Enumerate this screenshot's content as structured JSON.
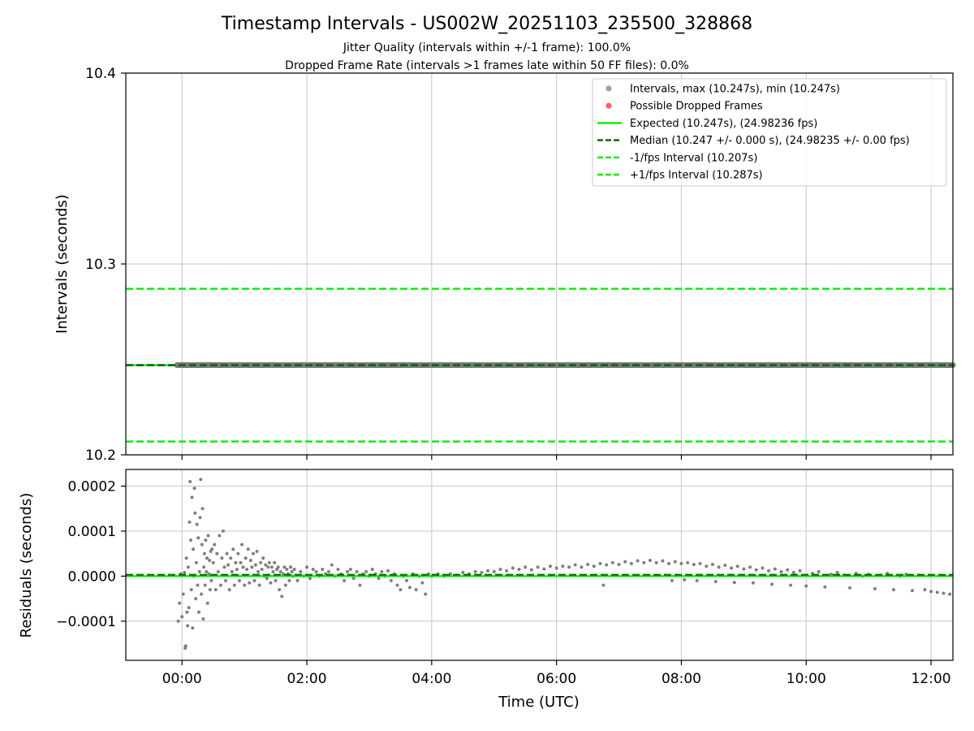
{
  "figure": {
    "title": "Timestamp Intervals - US002W_20251103_235500_328868",
    "subtitle_line1": "Jitter Quality (intervals within +/-1 frame): 100.0%",
    "subtitle_line2": "Dropped Frame Rate (intervals >1 frames late within 50 FF files): 0.0%",
    "xlabel": "Time (UTC)"
  },
  "chart_data": [
    {
      "type": "scatter",
      "panel": "intervals",
      "ylabel": "Intervals (seconds)",
      "xlim": [
        -0.9,
        12.35
      ],
      "ylim": [
        10.2,
        10.4
      ],
      "yticks": [
        10.2,
        10.3,
        10.4
      ],
      "ytick_labels": [
        "10.2",
        "10.3",
        "10.4"
      ],
      "grid": true,
      "legend_position": "upper-right",
      "intervals_value": 10.247,
      "intervals_x_range": [
        -0.08,
        12.35
      ],
      "dropped_frames": [],
      "lines": [
        {
          "key": "expected",
          "y": 10.247,
          "style": "solid",
          "color": "#00ee00"
        },
        {
          "key": "median",
          "y": 10.247,
          "style": "dashed",
          "color": "#006400"
        },
        {
          "key": "minus_fps",
          "y": 10.207,
          "style": "dashed",
          "color": "#00ee00"
        },
        {
          "key": "plus_fps",
          "y": 10.287,
          "style": "dashed",
          "color": "#00ee00"
        }
      ],
      "legend": [
        {
          "key": "intervals",
          "label": "Intervals, max (10.247s), min (10.247s)",
          "kind": "dot",
          "color": "#a0a0a0"
        },
        {
          "key": "dropped",
          "label": "Possible Dropped Frames",
          "kind": "dot",
          "color": "#ff6060"
        },
        {
          "key": "expected",
          "label": "Expected (10.247s), (24.98236 fps)",
          "kind": "solid",
          "color": "#00ee00"
        },
        {
          "key": "median",
          "label": "Median (10.247 +/- 0.000 s), (24.98235 +/- 0.00 fps)",
          "kind": "dashed",
          "color": "#006400"
        },
        {
          "key": "minus_fps",
          "label": "-1/fps Interval (10.207s)",
          "kind": "dashed",
          "color": "#00ee00"
        },
        {
          "key": "plus_fps",
          "label": "+1/fps Interval (10.287s)",
          "kind": "dashed",
          "color": "#00ee00"
        }
      ]
    },
    {
      "type": "scatter",
      "panel": "residuals",
      "ylabel": "Residuals (seconds)",
      "xlim": [
        -0.9,
        12.35
      ],
      "ylim": [
        -0.000187,
        0.000237
      ],
      "yticks": [
        -0.0001,
        0.0,
        0.0001,
        0.0002
      ],
      "ytick_labels": [
        "−0.0001",
        "0.0000",
        "0.0001",
        "0.0002"
      ],
      "xticks": [
        0,
        2,
        4,
        6,
        8,
        10,
        12
      ],
      "xtick_labels": [
        "00:00",
        "02:00",
        "04:00",
        "06:00",
        "08:00",
        "10:00",
        "12:00"
      ],
      "grid": true,
      "zero_line": {
        "y": 0.0,
        "color": "#00ee00"
      },
      "median_line": {
        "y": 3e-06,
        "color": "#006400"
      },
      "point_color": "#7f7f7f",
      "points": [
        [
          -0.06,
          -0.0001
        ],
        [
          -0.04,
          -6e-05
        ],
        [
          -0.02,
          5e-06
        ],
        [
          0.0,
          -9e-05
        ],
        [
          0.02,
          -4e-05
        ],
        [
          0.04,
          8e-06
        ],
        [
          0.05,
          -0.00016
        ],
        [
          0.06,
          -0.000155
        ],
        [
          0.07,
          4e-05
        ],
        [
          0.08,
          -8e-05
        ],
        [
          0.09,
          -0.00011
        ],
        [
          0.1,
          2e-05
        ],
        [
          0.11,
          -7e-05
        ],
        [
          0.12,
          0.00012
        ],
        [
          0.13,
          0.00021
        ],
        [
          0.14,
          8e-05
        ],
        [
          0.15,
          -3e-05
        ],
        [
          0.16,
          0.000175
        ],
        [
          0.17,
          -0.000115
        ],
        [
          0.18,
          6e-05
        ],
        [
          0.19,
          0.0
        ],
        [
          0.2,
          0.000195
        ],
        [
          0.21,
          0.00014
        ],
        [
          0.22,
          -5e-05
        ],
        [
          0.23,
          3e-05
        ],
        [
          0.24,
          0.000115
        ],
        [
          0.25,
          -2e-05
        ],
        [
          0.26,
          8.5e-05
        ],
        [
          0.27,
          -8e-05
        ],
        [
          0.28,
          1e-05
        ],
        [
          0.29,
          0.00013
        ],
        [
          0.3,
          0.000215
        ],
        [
          0.31,
          -4e-05
        ],
        [
          0.32,
          7e-05
        ],
        [
          0.33,
          0.00015
        ],
        [
          0.34,
          -9.5e-05
        ],
        [
          0.35,
          2e-05
        ],
        [
          0.36,
          5e-05
        ],
        [
          0.37,
          -2e-05
        ],
        [
          0.38,
          8e-05
        ],
        [
          0.39,
          1e-05
        ],
        [
          0.4,
          4e-05
        ],
        [
          0.41,
          -6e-05
        ],
        [
          0.42,
          9e-05
        ],
        [
          0.43,
          5e-06
        ],
        [
          0.44,
          3.5e-05
        ],
        [
          0.45,
          -3e-05
        ],
        [
          0.46,
          5.5e-05
        ],
        [
          0.47,
          -1e-05
        ],
        [
          0.48,
          6e-05
        ],
        [
          0.5,
          3e-05
        ],
        [
          0.52,
          7e-05
        ],
        [
          0.54,
          -3e-05
        ],
        [
          0.56,
          5e-05
        ],
        [
          0.58,
          1e-05
        ],
        [
          0.6,
          9e-05
        ],
        [
          0.62,
          -2e-05
        ],
        [
          0.64,
          4e-05
        ],
        [
          0.66,
          0.0001
        ],
        [
          0.68,
          2e-05
        ],
        [
          0.7,
          -1e-05
        ],
        [
          0.72,
          5e-05
        ],
        [
          0.74,
          2.5e-05
        ],
        [
          0.76,
          -3e-05
        ],
        [
          0.78,
          4e-05
        ],
        [
          0.8,
          1e-05
        ],
        [
          0.82,
          6e-05
        ],
        [
          0.84,
          -2e-05
        ],
        [
          0.86,
          3e-05
        ],
        [
          0.88,
          1.5e-05
        ],
        [
          0.9,
          5e-05
        ],
        [
          0.92,
          -1e-05
        ],
        [
          0.94,
          3e-05
        ],
        [
          0.96,
          7e-05
        ],
        [
          0.98,
          2e-05
        ],
        [
          1.0,
          -2e-05
        ],
        [
          1.02,
          4e-05
        ],
        [
          1.04,
          1.5e-05
        ],
        [
          1.06,
          6e-05
        ],
        [
          1.08,
          -1.5e-05
        ],
        [
          1.1,
          3.5e-05
        ],
        [
          1.12,
          2e-05
        ],
        [
          1.14,
          5e-05
        ],
        [
          1.16,
          -1e-05
        ],
        [
          1.18,
          2.5e-05
        ],
        [
          1.2,
          5.5e-05
        ],
        [
          1.22,
          1e-05
        ],
        [
          1.24,
          -2e-05
        ],
        [
          1.26,
          3e-05
        ],
        [
          1.28,
          1.5e-05
        ],
        [
          1.3,
          4e-05
        ],
        [
          1.32,
          0.0
        ],
        [
          1.34,
          2.5e-05
        ],
        [
          1.36,
          -5e-06
        ],
        [
          1.38,
          2e-05
        ],
        [
          1.4,
          3e-05
        ],
        [
          1.42,
          -1.5e-05
        ],
        [
          1.44,
          2e-05
        ],
        [
          1.46,
          1e-05
        ],
        [
          1.48,
          3e-05
        ],
        [
          1.5,
          -1e-05
        ],
        [
          1.52,
          1.5e-05
        ],
        [
          1.54,
          2e-05
        ],
        [
          1.56,
          -3e-05
        ],
        [
          1.58,
          1e-05
        ],
        [
          1.6,
          -4.5e-05
        ],
        [
          1.62,
          5e-06
        ],
        [
          1.64,
          2e-05
        ],
        [
          1.66,
          -2e-05
        ],
        [
          1.68,
          1.5e-05
        ],
        [
          1.7,
          5e-06
        ],
        [
          1.72,
          -1e-05
        ],
        [
          1.74,
          2e-05
        ],
        [
          1.76,
          1e-05
        ],
        [
          1.78,
          0.0
        ],
        [
          1.8,
          1.5e-05
        ],
        [
          1.85,
          -1e-05
        ],
        [
          1.9,
          1e-05
        ],
        [
          1.95,
          0.0
        ],
        [
          2.0,
          2e-05
        ],
        [
          2.05,
          -5e-06
        ],
        [
          2.1,
          1.5e-05
        ],
        [
          2.15,
          1e-05
        ],
        [
          2.2,
          0.0
        ],
        [
          2.25,
          1.5e-05
        ],
        [
          2.3,
          5e-06
        ],
        [
          2.35,
          1e-05
        ],
        [
          2.4,
          2.5e-05
        ],
        [
          2.45,
          0.0
        ],
        [
          2.5,
          1.5e-05
        ],
        [
          2.55,
          5e-06
        ],
        [
          2.6,
          -1e-05
        ],
        [
          2.65,
          1e-05
        ],
        [
          2.7,
          1.5e-05
        ],
        [
          2.75,
          -5e-06
        ],
        [
          2.8,
          1e-05
        ],
        [
          2.85,
          -2e-05
        ],
        [
          2.9,
          5e-06
        ],
        [
          2.95,
          1e-05
        ],
        [
          3.0,
          0.0
        ],
        [
          3.05,
          1.5e-05
        ],
        [
          3.1,
          5e-06
        ],
        [
          3.15,
          -5e-06
        ],
        [
          3.2,
          1e-05
        ],
        [
          3.25,
          0.0
        ],
        [
          3.3,
          1.2e-05
        ],
        [
          3.35,
          -1e-05
        ],
        [
          3.4,
          5e-06
        ],
        [
          3.45,
          -2e-05
        ],
        [
          3.5,
          -3e-05
        ],
        [
          3.55,
          0.0
        ],
        [
          3.6,
          -1e-05
        ],
        [
          3.65,
          -2.5e-05
        ],
        [
          3.7,
          5e-06
        ],
        [
          3.75,
          -3e-05
        ],
        [
          3.8,
          0.0
        ],
        [
          3.85,
          -1.5e-05
        ],
        [
          3.9,
          -4e-05
        ],
        [
          3.95,
          5e-06
        ],
        [
          4.0,
          0.0
        ],
        [
          4.1,
          5e-06
        ],
        [
          4.2,
          0.0
        ],
        [
          4.3,
          5e-06
        ],
        [
          4.4,
          2e-06
        ],
        [
          4.5,
          8e-06
        ],
        [
          4.6,
          5e-06
        ],
        [
          4.7,
          1e-05
        ],
        [
          4.8,
          8e-06
        ],
        [
          4.9,
          1.2e-05
        ],
        [
          5.0,
          1e-05
        ],
        [
          5.1,
          1.5e-05
        ],
        [
          5.2,
          1.2e-05
        ],
        [
          5.3,
          1.8e-05
        ],
        [
          5.4,
          1.5e-05
        ],
        [
          5.5,
          2e-05
        ],
        [
          5.6,
          1.4e-05
        ],
        [
          5.7,
          2e-05
        ],
        [
          5.8,
          1.6e-05
        ],
        [
          5.9,
          2.2e-05
        ],
        [
          6.0,
          1.8e-05
        ],
        [
          6.1,
          2.2e-05
        ],
        [
          6.2,
          2e-05
        ],
        [
          6.3,
          2.5e-05
        ],
        [
          6.4,
          2e-05
        ],
        [
          6.5,
          2.6e-05
        ],
        [
          6.6,
          2.2e-05
        ],
        [
          6.7,
          2.8e-05
        ],
        [
          6.75,
          -2e-05
        ],
        [
          6.8,
          2.5e-05
        ],
        [
          6.9,
          3e-05
        ],
        [
          7.0,
          2.6e-05
        ],
        [
          7.1,
          3.2e-05
        ],
        [
          7.2,
          2.8e-05
        ],
        [
          7.3,
          3.4e-05
        ],
        [
          7.4,
          3e-05
        ],
        [
          7.5,
          3.5e-05
        ],
        [
          7.6,
          3e-05
        ],
        [
          7.7,
          3.4e-05
        ],
        [
          7.8,
          2.8e-05
        ],
        [
          7.85,
          -1e-05
        ],
        [
          7.9,
          3.2e-05
        ],
        [
          8.0,
          2.8e-05
        ],
        [
          8.05,
          -8e-06
        ],
        [
          8.1,
          3e-05
        ],
        [
          8.2,
          2.6e-05
        ],
        [
          8.25,
          -1e-05
        ],
        [
          8.3,
          2.8e-05
        ],
        [
          8.4,
          2.2e-05
        ],
        [
          8.5,
          2.6e-05
        ],
        [
          8.55,
          -1.2e-05
        ],
        [
          8.6,
          2e-05
        ],
        [
          8.7,
          2.4e-05
        ],
        [
          8.8,
          1.8e-05
        ],
        [
          8.85,
          -1.4e-05
        ],
        [
          8.9,
          2.2e-05
        ],
        [
          9.0,
          1.6e-05
        ],
        [
          9.1,
          2e-05
        ],
        [
          9.15,
          -1.5e-05
        ],
        [
          9.2,
          1.4e-05
        ],
        [
          9.3,
          1.8e-05
        ],
        [
          9.4,
          1.2e-05
        ],
        [
          9.45,
          -1.8e-05
        ],
        [
          9.5,
          1.6e-05
        ],
        [
          9.6,
          1e-05
        ],
        [
          9.7,
          1.4e-05
        ],
        [
          9.75,
          -2e-05
        ],
        [
          9.8,
          8e-06
        ],
        [
          9.9,
          1.2e-05
        ],
        [
          10.0,
          -2.2e-05
        ],
        [
          10.1,
          6e-06
        ],
        [
          10.2,
          1e-05
        ],
        [
          10.3,
          -2.4e-05
        ],
        [
          10.4,
          4e-06
        ],
        [
          10.5,
          8e-06
        ],
        [
          10.6,
          2e-06
        ],
        [
          10.7,
          -2.6e-05
        ],
        [
          10.8,
          6e-06
        ],
        [
          10.9,
          0.0
        ],
        [
          11.0,
          4e-06
        ],
        [
          11.1,
          -2.8e-05
        ],
        [
          11.2,
          2e-06
        ],
        [
          11.3,
          6e-06
        ],
        [
          11.4,
          -3e-05
        ],
        [
          11.5,
          0.0
        ],
        [
          11.6,
          4e-06
        ],
        [
          11.7,
          -3.2e-05
        ],
        [
          11.8,
          2e-06
        ],
        [
          11.9,
          -3e-05
        ],
        [
          12.0,
          -3.4e-05
        ],
        [
          12.1,
          -3.6e-05
        ],
        [
          12.2,
          -3.8e-05
        ],
        [
          12.3,
          -4e-05
        ]
      ]
    }
  ]
}
